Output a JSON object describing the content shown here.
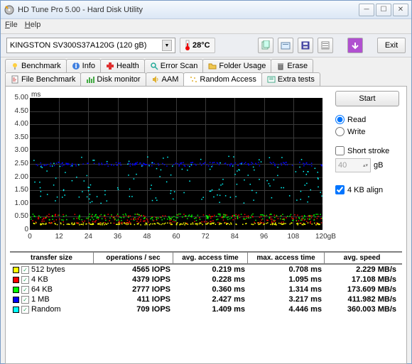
{
  "window": {
    "title": "HD Tune Pro 5.00 - Hard Disk Utility"
  },
  "menu": {
    "file": "File",
    "help": "Help"
  },
  "toolbar": {
    "drive": "KINGSTON SV300S37A120G (120 gB)",
    "temp": "28°C",
    "exit": "Exit"
  },
  "tabs_top": {
    "benchmark": "Benchmark",
    "info": "Info",
    "health": "Health",
    "error_scan": "Error Scan",
    "folder_usage": "Folder Usage",
    "erase": "Erase"
  },
  "tabs_bottom": {
    "file_benchmark": "File Benchmark",
    "disk_monitor": "Disk monitor",
    "aam": "AAM",
    "random_access": "Random Access",
    "extra_tests": "Extra tests"
  },
  "side": {
    "start": "Start",
    "read": "Read",
    "write": "Write",
    "short_stroke": "Short stroke",
    "ss_val": "40",
    "ss_unit": "gB",
    "align": "4 KB align"
  },
  "chart": {
    "y_unit": "ms",
    "ylim": [
      0,
      5.0
    ],
    "ystep": 0.5,
    "yticks": [
      "0",
      "0.50",
      "1.00",
      "1.50",
      "2.00",
      "2.50",
      "3.00",
      "3.50",
      "4.00",
      "4.50",
      "5.00"
    ],
    "xlim": [
      0,
      120
    ],
    "xstep": 12,
    "xticks": [
      "0",
      "12",
      "24",
      "36",
      "48",
      "60",
      "72",
      "84",
      "96",
      "108",
      "120gB"
    ],
    "bg": "#000000",
    "grid": "#3a3a3a",
    "series_colors": {
      "512b": "#ffff00",
      "4kb": "#ff0000",
      "64kb": "#00ff00",
      "1mb": "#0000ff",
      "random": "#00ffff"
    }
  },
  "results": {
    "headers": {
      "ts": "transfer size",
      "ops": "operations / sec",
      "avg": "avg. access time",
      "max": "max. access time",
      "spd": "avg. speed"
    },
    "rows": [
      {
        "color": "#ffff00",
        "label": "512 bytes",
        "ops": "4565 IOPS",
        "avg": "0.219 ms",
        "max": "0.708 ms",
        "spd": "2.229 MB/s"
      },
      {
        "color": "#ff0000",
        "label": "4 KB",
        "ops": "4379 IOPS",
        "avg": "0.228 ms",
        "max": "1.095 ms",
        "spd": "17.108 MB/s"
      },
      {
        "color": "#00ff00",
        "label": "64 KB",
        "ops": "2777 IOPS",
        "avg": "0.360 ms",
        "max": "1.314 ms",
        "spd": "173.609 MB/s"
      },
      {
        "color": "#0000ff",
        "label": "1 MB",
        "ops": "411 IOPS",
        "avg": "2.427 ms",
        "max": "3.217 ms",
        "spd": "411.982 MB/s"
      },
      {
        "color": "#00ffff",
        "label": "Random",
        "ops": "709 IOPS",
        "avg": "1.409 ms",
        "max": "4.446 ms",
        "spd": "360.003 MB/s"
      }
    ]
  }
}
